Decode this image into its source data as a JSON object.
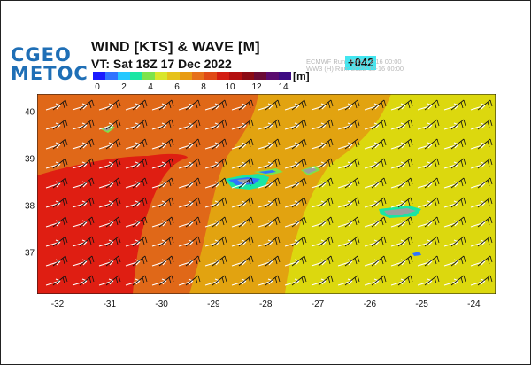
{
  "logo": {
    "line1": "CGEO",
    "line2": "METOC"
  },
  "title": "WIND [KTS] & WAVE [M]",
  "valid_time": "VT:  Sat 18Z 17 Dec 2022",
  "lead_time": "+042",
  "run_info": {
    "line1": "ECMWF   Run: 2022-12-16 00:00",
    "line2": "WW3 (H) Run: 2022-12-16 00:00"
  },
  "colorbar": {
    "unit": "[m]",
    "labels": [
      "0",
      "2",
      "4",
      "6",
      "8",
      "10",
      "12",
      "14"
    ],
    "colors": [
      "#1a1aff",
      "#2f73ff",
      "#25c8ff",
      "#19e6a3",
      "#7de34a",
      "#d9e62a",
      "#e6c21a",
      "#e89b12",
      "#e6701a",
      "#e04a17",
      "#d31d12",
      "#b30f0f",
      "#8a0a14",
      "#6a0a35",
      "#5a0b6e",
      "#3d0a82"
    ]
  },
  "axes": {
    "y_ticks": [
      "40",
      "39",
      "38",
      "37"
    ],
    "x_ticks": [
      "-32",
      "-31",
      "-30",
      "-29",
      "-28",
      "-27",
      "-26",
      "-25",
      "-24"
    ]
  },
  "map_colors": {
    "sea_high": "#df1e12",
    "sea_mid": "#e06818",
    "sea_low": "#e2a310",
    "sea_calm": "#dcd80e",
    "islands": "#9aa0a0",
    "wind_barbs": "#111111",
    "wave_arrows": "#ffffff"
  }
}
